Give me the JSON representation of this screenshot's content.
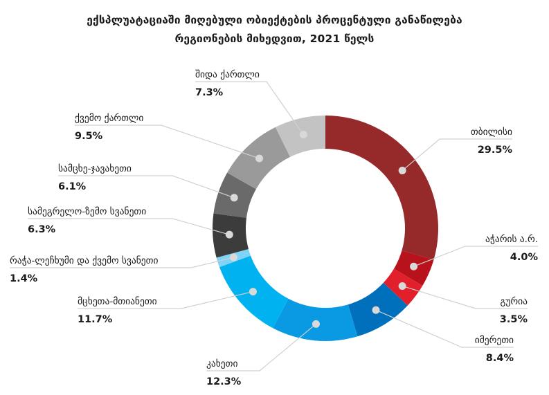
{
  "chart_data": {
    "type": "pie",
    "title_line1": "ექსპლუატაციაში მიღებული ობიექტების პროცენტული განაწილება",
    "title_line2": "რეგიონების მიხედვით, 2021 წელს",
    "unit": "%",
    "slices": [
      {
        "label": "თბილისი",
        "value": 29.5,
        "display": "29.5%",
        "color": "#962a2a"
      },
      {
        "label": "აჭარის ა.რ.",
        "value": 4.0,
        "display": "4.0%",
        "color": "#b8121c"
      },
      {
        "label": "გურია",
        "value": 3.5,
        "display": "3.5%",
        "color": "#e2202c"
      },
      {
        "label": "იმერეთი",
        "value": 8.4,
        "display": "8.4%",
        "color": "#0070bd"
      },
      {
        "label": "კახეთი",
        "value": 12.3,
        "display": "12.3%",
        "color": "#0a9ae4"
      },
      {
        "label": "მცხეთა-მთიანეთი",
        "value": 11.7,
        "display": "11.7%",
        "color": "#00b3f0"
      },
      {
        "label": "რაჭა-ლეჩხუმი და ქვემო სვანეთი",
        "value": 1.4,
        "display": "1.4%",
        "color": "#7fd3f6"
      },
      {
        "label": "სამეგრელო-ზემო სვანეთი",
        "value": 6.3,
        "display": "6.3%",
        "color": "#3c3c3c"
      },
      {
        "label": "სამცხე-ჯავახეთი",
        "value": 6.1,
        "display": "6.1%",
        "color": "#6a6a6a"
      },
      {
        "label": "ქვემო ქართლი",
        "value": 9.5,
        "display": "9.5%",
        "color": "#9a9a9a"
      },
      {
        "label": "შიდა ქართლი",
        "value": 7.3,
        "display": "7.3%",
        "color": "#c3c3c3"
      }
    ]
  }
}
